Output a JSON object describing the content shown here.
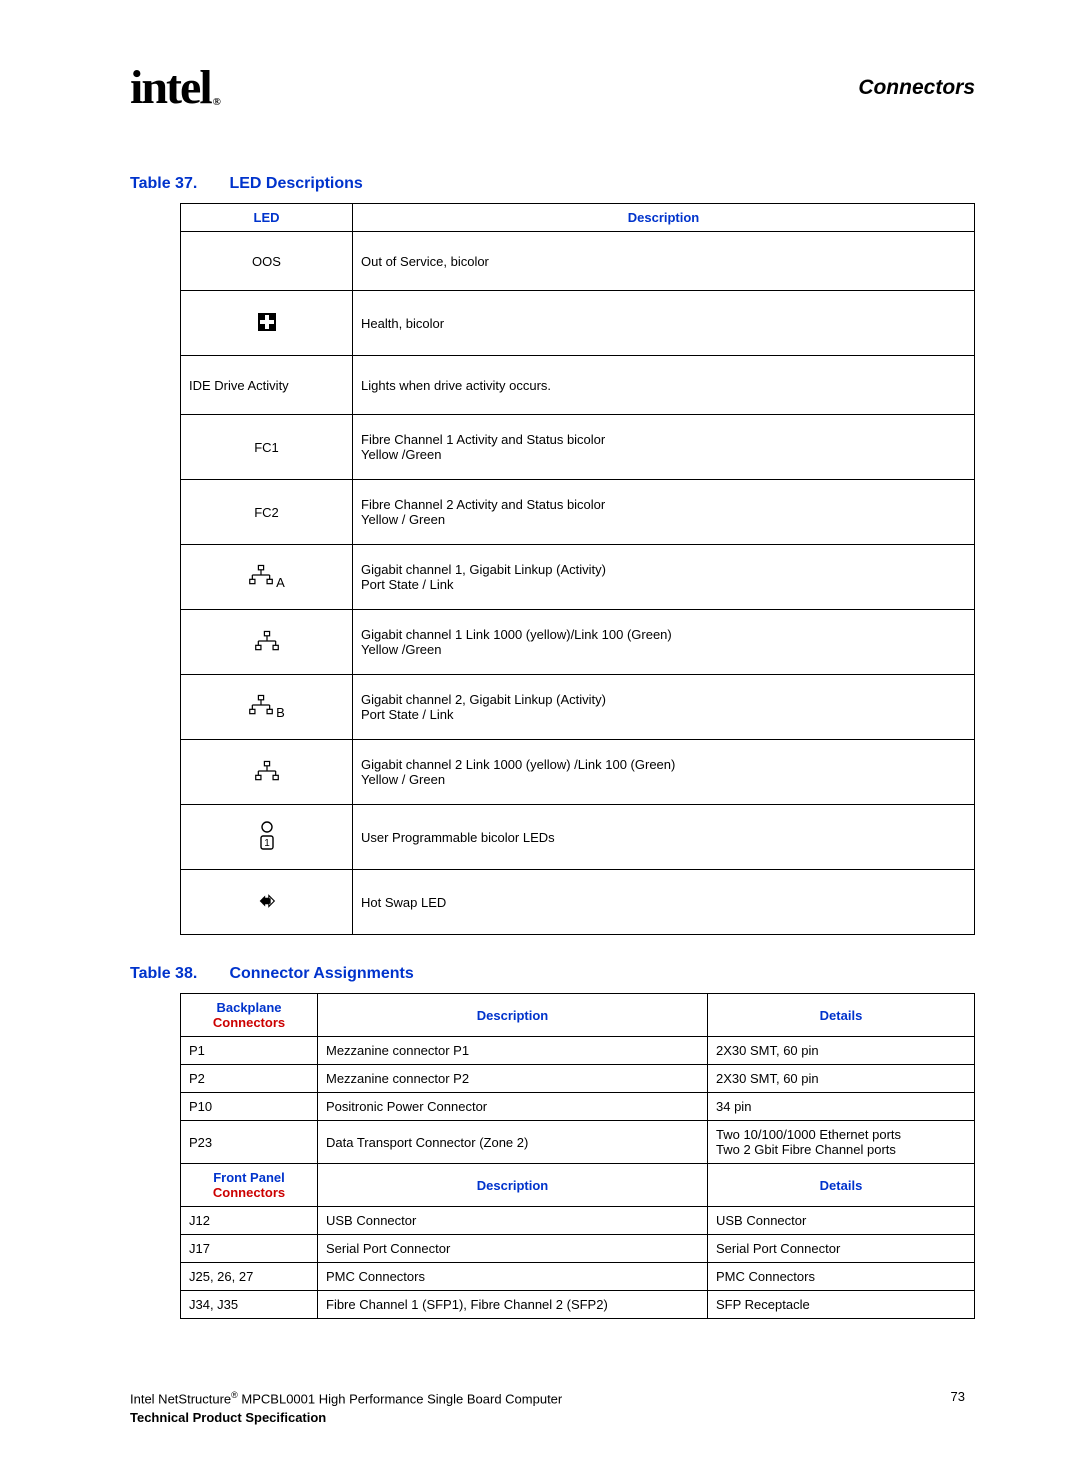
{
  "header": {
    "logo_text": "intel",
    "logo_reg": "®",
    "section": "Connectors"
  },
  "colors": {
    "heading_blue": "#0033cc",
    "heading_red": "#cc0000",
    "border": "#000000",
    "text": "#000000",
    "background": "#ffffff"
  },
  "table37": {
    "caption_prefix": "Table 37.",
    "caption_title": "LED Descriptions",
    "columns": {
      "led": "LED",
      "desc": "Description"
    },
    "rows": [
      {
        "led": "OOS",
        "desc": "Out of Service, bicolor",
        "icon": "text"
      },
      {
        "led": "",
        "desc": "Health, bicolor",
        "icon": "plus"
      },
      {
        "led": "IDE Drive Activity",
        "desc": "Lights when drive activity occurs.",
        "icon": "text"
      },
      {
        "led": "FC1",
        "desc": "Fibre Channel 1 Activity and Status bicolor\nYellow /Green",
        "icon": "text"
      },
      {
        "led": "FC2",
        "desc": "Fibre Channel 2 Activity and Status bicolor\nYellow / Green",
        "icon": "text"
      },
      {
        "led": "A",
        "desc": "Gigabit channel 1, Gigabit Linkup (Activity)\nPort State / Link",
        "icon": "net"
      },
      {
        "led": "",
        "desc": "Gigabit channel 1 Link 1000 (yellow)/Link 100 (Green)\nYellow /Green",
        "icon": "net"
      },
      {
        "led": "B",
        "desc": "Gigabit channel 2, Gigabit Linkup (Activity)\nPort State / Link",
        "icon": "net"
      },
      {
        "led": "",
        "desc": "Gigabit channel 2 Link 1000 (yellow) /Link 100 (Green)\nYellow / Green",
        "icon": "net"
      },
      {
        "led": "",
        "desc": "User Programmable bicolor LEDs",
        "icon": "user1"
      },
      {
        "led": "",
        "desc": "Hot Swap LED",
        "icon": "hotswap"
      }
    ]
  },
  "table38": {
    "caption_prefix": "Table 38.",
    "caption_title": "Connector Assignments",
    "header1": {
      "col1a": "Backplane",
      "col1b": "Connectors",
      "col2": "Description",
      "col3": "Details"
    },
    "rows1": [
      {
        "c1": "P1",
        "c2": "Mezzanine connector P1",
        "c3": "2X30 SMT, 60 pin"
      },
      {
        "c1": "P2",
        "c2": "Mezzanine connector P2",
        "c3": "2X30 SMT, 60 pin"
      },
      {
        "c1": "P10",
        "c2": "Positronic Power Connector",
        "c3": "34 pin"
      },
      {
        "c1": "P23",
        "c2": "Data Transport Connector (Zone 2)",
        "c3": "Two 10/100/1000 Ethernet ports\nTwo 2 Gbit Fibre Channel ports"
      }
    ],
    "header2": {
      "col1a": "Front Panel",
      "col1b": "Connectors",
      "col2": "Description",
      "col3": "Details"
    },
    "rows2": [
      {
        "c1": "J12",
        "c2": "USB Connector",
        "c3": "USB Connector"
      },
      {
        "c1": "J17",
        "c2": "Serial Port Connector",
        "c3": "Serial Port Connector"
      },
      {
        "c1": "J25, 26, 27",
        "c2": "PMC Connectors",
        "c3": "PMC Connectors"
      },
      {
        "c1": "J34, J35",
        "c2": "Fibre Channel 1 (SFP1), Fibre Channel 2 (SFP2)",
        "c3": "SFP Receptacle"
      }
    ]
  },
  "footer": {
    "line1a": "Intel NetStructure",
    "line1_reg": "®",
    "line1b": " MPCBL0001 High Performance Single Board Computer",
    "line2": "Technical Product Specification",
    "page": "73"
  }
}
